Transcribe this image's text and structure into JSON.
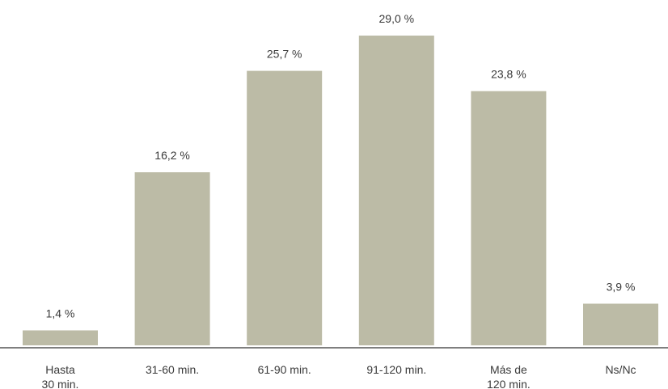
{
  "chart_data": {
    "type": "bar",
    "categories": [
      [
        "Hasta",
        "30 min."
      ],
      [
        "31-60 min."
      ],
      [
        "61-90 min."
      ],
      [
        "91-120 min."
      ],
      [
        "Más de",
        "120 min."
      ],
      [
        "Ns/Nc"
      ]
    ],
    "values": [
      1.4,
      16.2,
      25.7,
      29.0,
      23.8,
      3.9
    ],
    "value_labels": [
      "1,4 %",
      "16,2 %",
      "25,7 %",
      "29,0 %",
      "23,8 %",
      "3,9 %"
    ],
    "title": "",
    "xlabel": "",
    "ylabel": "",
    "ylim": [
      0,
      29.0
    ],
    "grid": false,
    "legend": "none",
    "colors": {
      "bar": "#bcbba6",
      "axis": "#555555",
      "text": "#3a3a3a"
    }
  }
}
